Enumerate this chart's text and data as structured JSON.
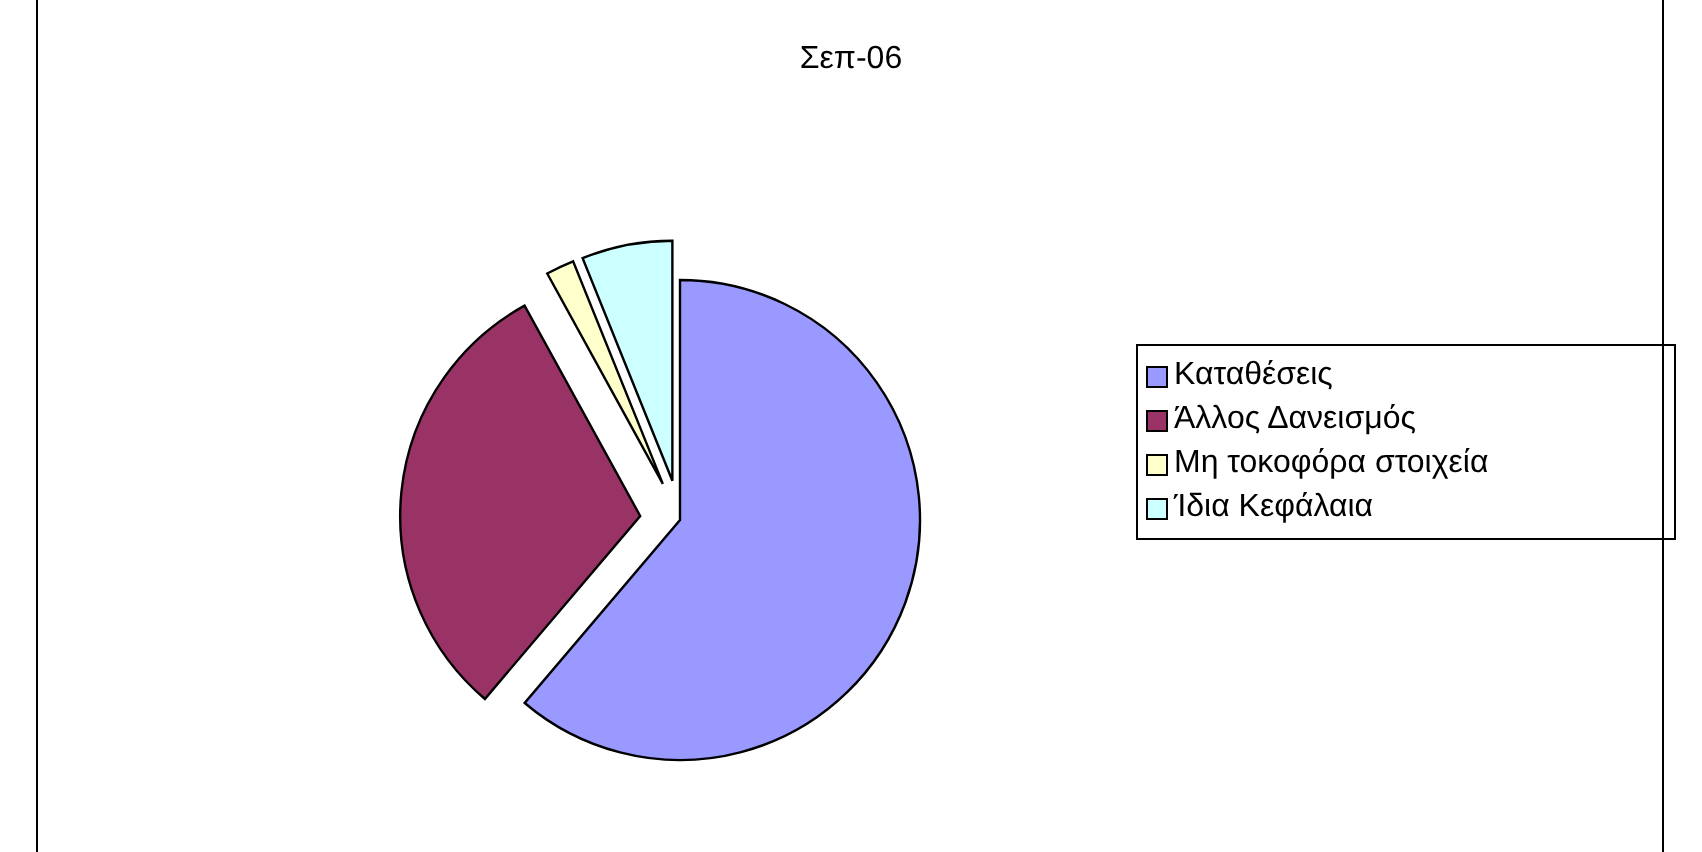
{
  "chart_data": {
    "type": "pie",
    "title": "Σεπ-06",
    "categories": [
      "Καταθέσεις",
      "Άλλος Δανεισμός",
      "Μη τοκοφόρα στοιχεία",
      "Ίδια Κεφάλαια"
    ],
    "values": [
      61.2,
      30.8,
      1.9,
      6.1
    ],
    "colors": [
      "#9999ff",
      "#993366",
      "#ffffcc",
      "#ccffff"
    ],
    "legend": "right"
  }
}
